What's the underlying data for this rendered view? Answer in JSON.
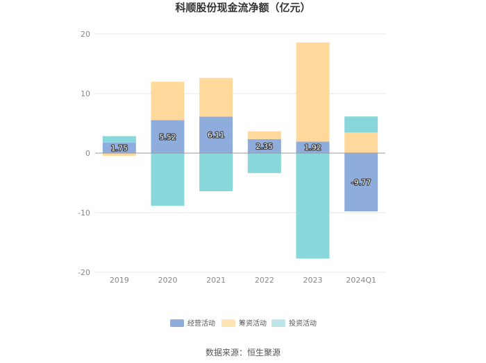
{
  "chart_data": {
    "type": "bar",
    "stacked": true,
    "title": "科顺股份现金流净额（亿元）",
    "categories": [
      "2019",
      "2020",
      "2021",
      "2022",
      "2023",
      "2024Q1"
    ],
    "series": [
      {
        "name": "经营活动",
        "color": "#8eaddc",
        "values": [
          1.75,
          5.52,
          6.11,
          2.35,
          1.92,
          -9.77
        ],
        "labeled": true
      },
      {
        "name": "筹资活动",
        "color": "#ffd99b",
        "values": [
          -0.45,
          6.45,
          6.5,
          1.3,
          16.65,
          3.45
        ],
        "labeled": false
      },
      {
        "name": "投资活动",
        "color": "#88d7da",
        "values": [
          1.1,
          -8.85,
          -6.4,
          -3.35,
          -17.7,
          2.7
        ],
        "labeled": false
      }
    ],
    "data_labels": [
      "1.75",
      "5.52",
      "6.11",
      "2.35",
      "1.92",
      "-9.77"
    ],
    "ylim": [
      -20,
      20
    ],
    "yticks": [
      "20",
      "10",
      "0",
      "-10",
      "-20"
    ],
    "grid": true,
    "legend_position": "bottom"
  },
  "source": "数据来源：恒生聚源"
}
